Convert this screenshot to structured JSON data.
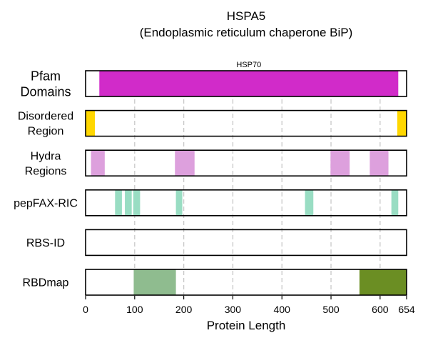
{
  "chart_data": {
    "type": "bar",
    "title_line1": "HSPA5",
    "title_line2": "(Endoplasmic reticulum chaperone BiP)",
    "xlabel": "Protein Length",
    "xlim": [
      0,
      654
    ],
    "xticks": [
      0,
      100,
      200,
      300,
      400,
      500,
      600,
      654
    ],
    "grid": "vertical dashed",
    "rows": [
      {
        "label": [
          "Pfam",
          "Domains"
        ],
        "segments": [
          {
            "start": 28,
            "end": 637,
            "color": "#D12BC9",
            "annotation": "HSP70"
          }
        ]
      },
      {
        "label": [
          "Disordered",
          "Region"
        ],
        "segments": [
          {
            "start": 0,
            "end": 19,
            "color": "#FFD700"
          },
          {
            "start": 635,
            "end": 654,
            "color": "#FFD700"
          }
        ]
      },
      {
        "label": [
          "Hydra",
          "Regions"
        ],
        "segments": [
          {
            "start": 11,
            "end": 39,
            "color": "#DDA0DD"
          },
          {
            "start": 182,
            "end": 222,
            "color": "#DDA0DD"
          },
          {
            "start": 499,
            "end": 538,
            "color": "#DDA0DD"
          },
          {
            "start": 579,
            "end": 617,
            "color": "#DDA0DD"
          }
        ]
      },
      {
        "label": [
          "pepFAX-RIC"
        ],
        "segments": [
          {
            "start": 60,
            "end": 74,
            "color": "#99DDC3"
          },
          {
            "start": 80,
            "end": 94,
            "color": "#99DDC3"
          },
          {
            "start": 97,
            "end": 111,
            "color": "#99DDC3"
          },
          {
            "start": 184,
            "end": 197,
            "color": "#99DDC3"
          },
          {
            "start": 447,
            "end": 464,
            "color": "#99DDC3"
          },
          {
            "start": 623,
            "end": 637,
            "color": "#99DDC3"
          }
        ]
      },
      {
        "label": [
          "RBS-ID"
        ],
        "segments": []
      },
      {
        "label": [
          "RBDmap"
        ],
        "segments": [
          {
            "start": 98,
            "end": 184,
            "color": "#8FBC8F"
          },
          {
            "start": 558,
            "end": 654,
            "color": "#6B8E23"
          }
        ]
      }
    ]
  }
}
